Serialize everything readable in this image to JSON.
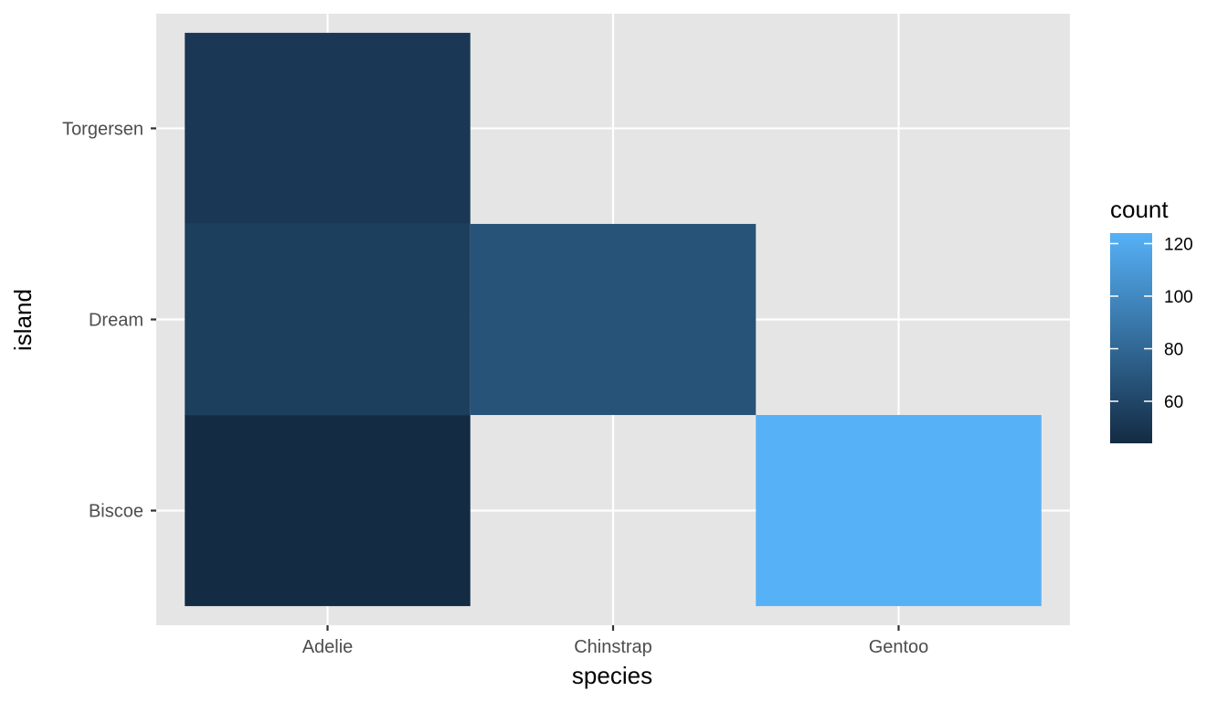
{
  "chart_data": {
    "type": "heatmap",
    "title": "",
    "xlabel": "species",
    "ylabel": "island",
    "x_categories": [
      "Adelie",
      "Chinstrap",
      "Gentoo"
    ],
    "y_categories": [
      "Biscoe",
      "Dream",
      "Torgersen"
    ],
    "cells": [
      {
        "x": "Adelie",
        "y": "Biscoe",
        "count": 44
      },
      {
        "x": "Adelie",
        "y": "Dream",
        "count": 56
      },
      {
        "x": "Adelie",
        "y": "Torgersen",
        "count": 52
      },
      {
        "x": "Chinstrap",
        "y": "Dream",
        "count": 68
      },
      {
        "x": "Gentoo",
        "y": "Biscoe",
        "count": 124
      }
    ],
    "legend": {
      "title": "count",
      "placement": "right",
      "ticks": [
        60,
        80,
        100,
        120
      ],
      "range": [
        44,
        124
      ],
      "low_color": "#132B43",
      "high_color": "#56B1F7"
    },
    "grid": true,
    "panel_background": "#e5e5e5",
    "grid_color": "#ffffff"
  }
}
